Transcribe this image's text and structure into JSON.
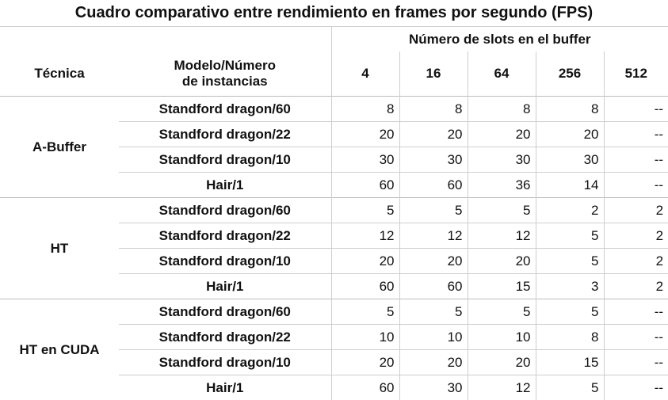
{
  "title": "Cuadro comparativo entre rendimiento en frames por segundo (FPS)",
  "header": {
    "slots_caption": "Número de slots en el buffer",
    "technique_label": "Técnica",
    "model_label": "Modelo/Número de instancias",
    "slots": [
      "4",
      "16",
      "64",
      "256",
      "512"
    ]
  },
  "groups": [
    {
      "technique": "A-Buffer",
      "rows": [
        {
          "model": "Standford dragon/60",
          "values": [
            "8",
            "8",
            "8",
            "8",
            "--"
          ]
        },
        {
          "model": "Standford dragon/22",
          "values": [
            "20",
            "20",
            "20",
            "20",
            "--"
          ]
        },
        {
          "model": "Standford dragon/10",
          "values": [
            "30",
            "30",
            "30",
            "30",
            "--"
          ]
        },
        {
          "model": "Hair/1",
          "values": [
            "60",
            "60",
            "36",
            "14",
            "--"
          ]
        }
      ]
    },
    {
      "technique": "HT",
      "rows": [
        {
          "model": "Standford dragon/60",
          "values": [
            "5",
            "5",
            "5",
            "2",
            "2"
          ]
        },
        {
          "model": "Standford dragon/22",
          "values": [
            "12",
            "12",
            "12",
            "5",
            "2"
          ]
        },
        {
          "model": "Standford dragon/10",
          "values": [
            "20",
            "20",
            "20",
            "5",
            "2"
          ]
        },
        {
          "model": "Hair/1",
          "values": [
            "60",
            "60",
            "15",
            "3",
            "2"
          ]
        }
      ]
    },
    {
      "technique": "HT en CUDA",
      "rows": [
        {
          "model": "Standford dragon/60",
          "values": [
            "5",
            "5",
            "5",
            "5",
            "--"
          ]
        },
        {
          "model": "Standford dragon/22",
          "values": [
            "10",
            "10",
            "10",
            "8",
            "--"
          ]
        },
        {
          "model": "Standford dragon/10",
          "values": [
            "20",
            "20",
            "20",
            "15",
            "--"
          ]
        },
        {
          "model": "Hair/1",
          "values": [
            "60",
            "30",
            "12",
            "5",
            "--"
          ]
        }
      ]
    }
  ]
}
